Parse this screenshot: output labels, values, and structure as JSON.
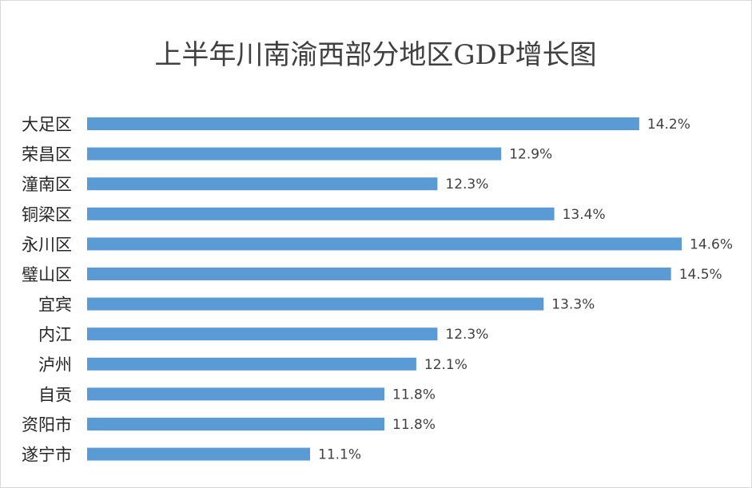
{
  "chart_data": {
    "type": "bar",
    "orientation": "horizontal",
    "title": "上半年川南渝西部分地区GDP增长图",
    "categories": [
      "大足区",
      "荣昌区",
      "潼南区",
      "铜梁区",
      "永川区",
      "璧山区",
      "宜宾",
      "内江",
      "泸州",
      "自贡",
      "资阳市",
      "遂宁市"
    ],
    "values": [
      14.2,
      12.9,
      12.3,
      13.4,
      14.6,
      14.5,
      13.3,
      12.3,
      12.1,
      11.8,
      11.8,
      11.1
    ],
    "value_labels": [
      "14.2%",
      "12.9%",
      "12.3%",
      "13.4%",
      "14.6%",
      "14.5%",
      "13.3%",
      "12.3%",
      "12.1%",
      "11.8%",
      "11.8%",
      "11.1%"
    ],
    "xlabel": "",
    "ylabel": "",
    "xlim": [
      9.0,
      14.6
    ],
    "grid": false,
    "legend": "none",
    "bar_color": "#5b9bd5"
  }
}
